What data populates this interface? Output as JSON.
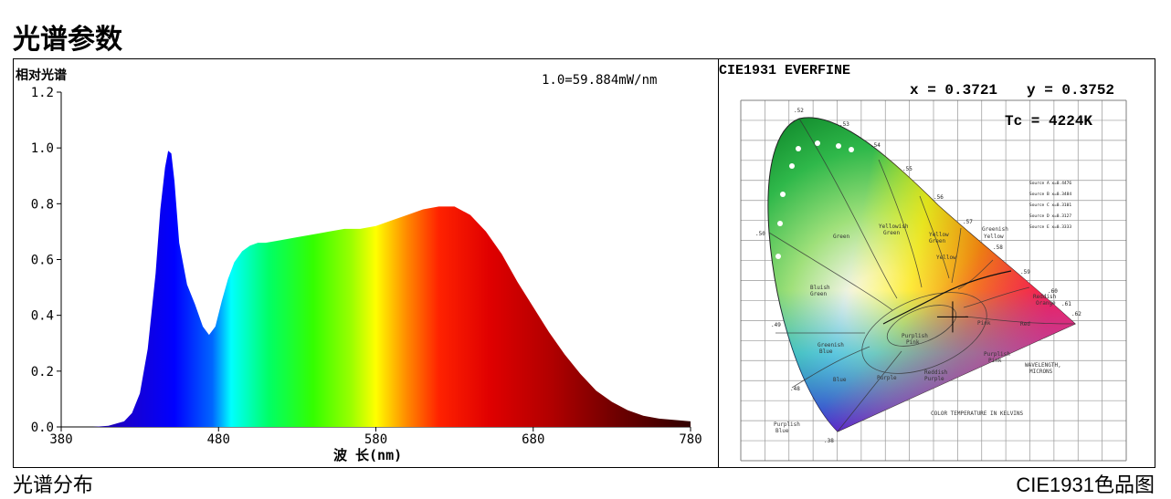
{
  "title": "光谱参数",
  "captions": {
    "spectrum": "光谱分布",
    "cie": "CIE1931色品图"
  },
  "chart_data": [
    {
      "type": "area",
      "ylabel": "相对光谱",
      "xlabel": "波 长(nm)",
      "annotation": "1.0=59.884mW/nm",
      "xlim": [
        380,
        780
      ],
      "ylim": [
        0,
        1.2
      ],
      "xticks": [
        380,
        480,
        580,
        680,
        780
      ],
      "xtick_labels": [
        "380",
        "480",
        "580",
        "680",
        "780"
      ],
      "yticks": [
        0.0,
        0.2,
        0.4,
        0.6,
        0.8,
        1.0,
        1.2
      ],
      "ytick_labels": [
        "0.0",
        "0.2",
        "0.4",
        "0.6",
        "0.8",
        "1.0",
        "1.2"
      ],
      "fill": "spectral",
      "x": [
        380,
        400,
        410,
        420,
        425,
        430,
        435,
        440,
        443,
        446,
        448,
        450,
        452,
        455,
        460,
        465,
        470,
        474,
        478,
        482,
        486,
        490,
        495,
        500,
        505,
        510,
        520,
        530,
        540,
        550,
        560,
        570,
        580,
        590,
        600,
        610,
        620,
        630,
        640,
        650,
        660,
        670,
        680,
        690,
        700,
        710,
        720,
        730,
        740,
        750,
        760,
        770,
        780
      ],
      "y": [
        0.0,
        0.0,
        0.004,
        0.02,
        0.05,
        0.12,
        0.28,
        0.55,
        0.78,
        0.93,
        0.99,
        0.98,
        0.88,
        0.66,
        0.51,
        0.44,
        0.36,
        0.33,
        0.36,
        0.45,
        0.53,
        0.59,
        0.63,
        0.65,
        0.66,
        0.66,
        0.67,
        0.68,
        0.69,
        0.7,
        0.71,
        0.71,
        0.72,
        0.74,
        0.76,
        0.78,
        0.79,
        0.79,
        0.76,
        0.7,
        0.62,
        0.52,
        0.43,
        0.34,
        0.26,
        0.19,
        0.13,
        0.09,
        0.06,
        0.04,
        0.03,
        0.025,
        0.02
      ]
    },
    {
      "type": "scatter",
      "title": "CIE1931 EVERFINE",
      "x_readout": "x = 0.3721",
      "y_readout": "y = 0.3752",
      "tc_readout": "Tc = 4224K",
      "point": {
        "x": 0.3721,
        "y": 0.3752
      },
      "xlim": [
        0,
        0.8
      ],
      "ylim": [
        0,
        0.9
      ]
    }
  ]
}
